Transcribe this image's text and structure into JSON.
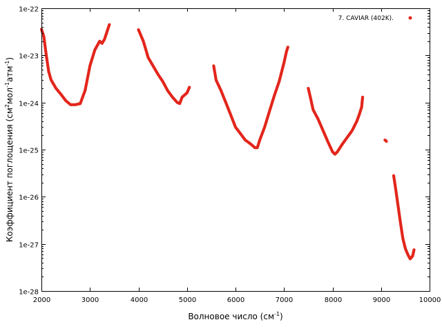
{
  "chart_data": {
    "type": "scatter",
    "title": "",
    "xlabel": {
      "base": "Волновое число (см",
      "sup": "-1",
      "tail": ")"
    },
    "ylabel": {
      "p1": "Коэффициент поглощения (см",
      "s1": "2",
      "p2": "мол",
      "s2": "-1",
      "p3": "атм",
      "s3": "-1",
      "p4": ")"
    },
    "xlim": [
      2000,
      10000
    ],
    "ylim_log10": [
      -28,
      -22
    ],
    "yscale": "log",
    "x_ticks": [
      2000,
      3000,
      4000,
      5000,
      6000,
      7000,
      8000,
      9000,
      10000
    ],
    "x_tick_labels": [
      "2000",
      "3000",
      "4000",
      "5000",
      "6000",
      "7000",
      "8000",
      "9000",
      "10000"
    ],
    "y_ticks_log10": [
      -22,
      -23,
      -24,
      -25,
      -26,
      -27,
      -28
    ],
    "y_tick_labels": [
      "1e-22",
      "1e-23",
      "1e-24",
      "1e-25",
      "1e-26",
      "1e-27",
      "1e-28"
    ],
    "grid": false,
    "legend_position": "top-right",
    "series": [
      {
        "name": "7. CAVIAR (402K).",
        "color": "#e3261c",
        "segments": [
          [
            [
              2000,
              3.6e-23
            ],
            [
              2050,
              2.5e-23
            ],
            [
              2100,
              1e-23
            ],
            [
              2150,
              4.5e-24
            ],
            [
              2200,
              3e-24
            ],
            [
              2300,
              2e-24
            ],
            [
              2400,
              1.5e-24
            ],
            [
              2500,
              1.1e-24
            ],
            [
              2600,
              9e-25
            ],
            [
              2700,
              9e-25
            ],
            [
              2800,
              9.5e-25
            ],
            [
              2900,
              1.8e-24
            ],
            [
              3000,
              6e-24
            ],
            [
              3100,
              1.3e-23
            ],
            [
              3200,
              2e-23
            ],
            [
              3250,
              1.8e-23
            ],
            [
              3300,
              2.2e-23
            ],
            [
              3400,
              4.5e-23
            ]
          ],
          [
            [
              4000,
              3.5e-23
            ],
            [
              4100,
              2e-23
            ],
            [
              4200,
              9e-24
            ],
            [
              4300,
              6e-24
            ],
            [
              4400,
              4e-24
            ],
            [
              4500,
              2.8e-24
            ],
            [
              4600,
              1.8e-24
            ],
            [
              4700,
              1.3e-24
            ],
            [
              4800,
              1e-24
            ],
            [
              4850,
              9.5e-25
            ],
            [
              4900,
              1.3e-24
            ],
            [
              5000,
              1.6e-24
            ],
            [
              5050,
              2.1e-24
            ]
          ],
          [
            [
              5550,
              6e-24
            ],
            [
              5600,
              3e-24
            ],
            [
              5700,
              1.8e-24
            ],
            [
              5800,
              1e-24
            ],
            [
              5900,
              5.5e-25
            ],
            [
              6000,
              3e-25
            ],
            [
              6100,
              2.2e-25
            ],
            [
              6200,
              1.6e-25
            ],
            [
              6300,
              1.35e-25
            ],
            [
              6400,
              1.1e-25
            ],
            [
              6450,
              1.1e-25
            ],
            [
              6500,
              1.6e-25
            ],
            [
              6600,
              3e-25
            ],
            [
              6700,
              6.5e-25
            ],
            [
              6800,
              1.4e-24
            ],
            [
              6900,
              2.8e-24
            ],
            [
              7000,
              7e-24
            ],
            [
              7050,
              1.2e-23
            ],
            [
              7080,
              1.5e-23
            ]
          ],
          [
            [
              7500,
              2e-24
            ],
            [
              7550,
              1.2e-24
            ],
            [
              7600,
              7e-25
            ],
            [
              7700,
              4.5e-25
            ],
            [
              7800,
              2.6e-25
            ],
            [
              7900,
              1.5e-25
            ],
            [
              8000,
              9e-26
            ],
            [
              8050,
              8e-26
            ],
            [
              8100,
              9e-26
            ],
            [
              8200,
              1.3e-25
            ],
            [
              8300,
              1.8e-25
            ],
            [
              8400,
              2.5e-25
            ],
            [
              8500,
              4e-25
            ],
            [
              8550,
              5.5e-25
            ],
            [
              8600,
              8e-25
            ],
            [
              8620,
              1.3e-24
            ]
          ],
          [
            [
              9080,
              1.6e-25
            ],
            [
              9100,
              1.55e-25
            ],
            [
              9110,
              1.5e-25
            ]
          ],
          [
            [
              9260,
              2.8e-26
            ],
            [
              9300,
              1.5e-26
            ],
            [
              9350,
              6.5e-27
            ],
            [
              9400,
              2.8e-27
            ],
            [
              9450,
              1.3e-27
            ],
            [
              9500,
              8e-28
            ],
            [
              9550,
              6e-28
            ],
            [
              9600,
              4.8e-28
            ],
            [
              9650,
              5.5e-28
            ],
            [
              9680,
              7.5e-28
            ]
          ]
        ]
      }
    ]
  }
}
